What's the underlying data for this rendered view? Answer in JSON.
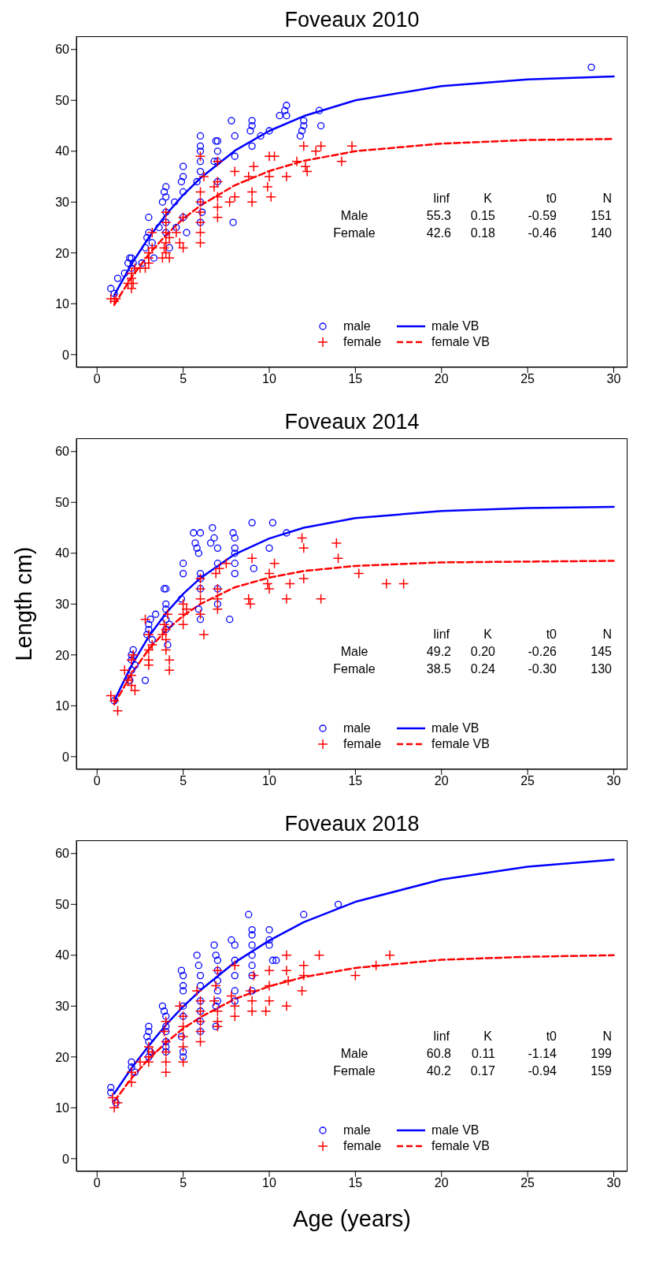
{
  "chart_data": [
    {
      "type": "scatter",
      "title": "Foveaux 2010",
      "xlim": [
        -1.2,
        30.8
      ],
      "ylim": [
        -2.5,
        62.6
      ],
      "xticks": [
        0,
        5,
        10,
        15,
        20,
        25,
        30
      ],
      "yticks": [
        0,
        10,
        20,
        30,
        40,
        50,
        60
      ],
      "legend": "bottom",
      "annotations": [
        "linf",
        "K",
        "t0",
        "N",
        "Male",
        "55.3",
        "0.15",
        "-0.59",
        "151",
        "Female",
        "42.6",
        "0.18",
        "-0.46",
        "140"
      ],
      "series": [
        {
          "name": "male",
          "type": "scatter",
          "marker": "circle",
          "color": "#0000ff",
          "x": [
            0.8,
            1,
            1.2,
            1.6,
            1.8,
            1.9,
            2,
            2,
            2.1,
            2.6,
            2.8,
            2.9,
            3,
            3,
            3.2,
            3.3,
            3.6,
            3.8,
            3.9,
            4,
            4,
            4,
            4,
            4,
            4.2,
            4.5,
            4.6,
            4.9,
            5,
            5,
            5,
            5,
            5.2,
            6,
            6,
            6,
            6,
            6,
            5.8,
            6,
            6.1,
            6,
            6.8,
            6.9,
            7,
            7,
            7,
            7,
            7.9,
            7.8,
            8,
            8,
            8.9,
            9,
            9,
            9,
            9.5,
            10,
            10.6,
            10.9,
            11,
            11,
            11.9,
            11.8,
            12,
            12,
            12.9,
            13,
            28.7
          ],
          "values": [
            13,
            12,
            15,
            16,
            18,
            19,
            19,
            17,
            18,
            18,
            21,
            23,
            27,
            24,
            22,
            19,
            25,
            30,
            32,
            33,
            31,
            28,
            26,
            24,
            21,
            30,
            25,
            34,
            37,
            35,
            32,
            27,
            24,
            43,
            41,
            40,
            38,
            36,
            34,
            30,
            28,
            26,
            38,
            42,
            42,
            40,
            38,
            34,
            26,
            46,
            43,
            39,
            44,
            46,
            45,
            41,
            43,
            44,
            47,
            48,
            49,
            47,
            44,
            43,
            45,
            46,
            48,
            45,
            56.5
          ]
        },
        {
          "name": "female",
          "type": "scatter",
          "marker": "cross",
          "color": "#ff0000",
          "x": [
            0.8,
            1,
            1.1,
            1.8,
            2,
            2,
            2,
            2.2,
            2.1,
            2.5,
            2.8,
            3,
            3,
            3,
            3.2,
            3.2,
            3.8,
            3.9,
            4,
            4,
            4,
            4,
            4,
            4.2,
            4.2,
            4.6,
            4.8,
            5,
            5,
            6,
            6,
            6,
            6,
            6,
            6,
            6,
            6.2,
            6.8,
            7,
            7,
            7,
            7,
            7,
            7.7,
            8,
            8,
            8.8,
            9,
            9,
            9.1,
            9.9,
            10,
            10,
            10.1,
            10.3,
            11,
            11.6,
            12,
            12.2,
            12.1,
            12.7,
            13,
            14.2,
            14.8
          ],
          "values": [
            11,
            10.5,
            11,
            14,
            16,
            15,
            13,
            17,
            14,
            17,
            17,
            20,
            19,
            18,
            21,
            24,
            19,
            21,
            24,
            22,
            20,
            26,
            28,
            19,
            23,
            24,
            22,
            21,
            27,
            32,
            30,
            28,
            26,
            24,
            22,
            39,
            35,
            33,
            31,
            29,
            27,
            34,
            38,
            30,
            36,
            31,
            35,
            32,
            30,
            37,
            33,
            35,
            39,
            31,
            39,
            35,
            38,
            41,
            36,
            37,
            40,
            41,
            38,
            41
          ]
        },
        {
          "name": "male VB",
          "type": "line",
          "line_style": "solid",
          "color": "#0000ff",
          "x": [
            1,
            2,
            3,
            4,
            5,
            6,
            8,
            10,
            12,
            15,
            20,
            25,
            30
          ],
          "values": [
            11.7,
            17.8,
            23.0,
            27.5,
            31.4,
            34.7,
            40.1,
            44.0,
            46.9,
            50.0,
            52.8,
            54.1,
            54.7
          ]
        },
        {
          "name": "female VB",
          "type": "line",
          "line_style": "dashed",
          "color": "#ff0000",
          "x": [
            1,
            2,
            3,
            4,
            5,
            6,
            8,
            10,
            12,
            15,
            20,
            25,
            30
          ],
          "values": [
            9.8,
            15.2,
            19.7,
            23.5,
            26.7,
            29.3,
            33.3,
            36.1,
            38.1,
            40.0,
            41.5,
            42.2,
            42.4
          ]
        }
      ]
    },
    {
      "type": "scatter",
      "title": "Foveaux 2014",
      "ylabel": "Length cm)",
      "xlim": [
        -1.2,
        30.8
      ],
      "ylim": [
        -2.5,
        62.6
      ],
      "xticks": [
        0,
        5,
        10,
        15,
        20,
        25,
        30
      ],
      "yticks": [
        0,
        10,
        20,
        30,
        40,
        50,
        60
      ],
      "legend": "bottom",
      "annotations": [
        "linf",
        "K",
        "t0",
        "N",
        "Male",
        "49.2",
        "0.20",
        "-0.26",
        "145",
        "Female",
        "38.5",
        "0.24",
        "-0.30",
        "130"
      ],
      "series": [
        {
          "name": "male",
          "type": "scatter",
          "marker": "circle",
          "color": "#0000ff",
          "x": [
            1,
            1.9,
            2,
            2,
            2,
            2.1,
            2.2,
            2.8,
            2.9,
            3,
            3,
            3.1,
            3.2,
            3.4,
            3.9,
            4,
            4,
            4,
            4,
            4,
            4.1,
            4.2,
            4.9,
            5,
            5,
            5.6,
            5.7,
            5.8,
            5.9,
            6,
            6,
            6,
            6,
            5.9,
            6,
            6.6,
            6.7,
            6.8,
            7,
            7,
            7,
            7,
            7.7,
            7.9,
            8,
            8,
            8,
            8,
            8,
            9,
            9.1,
            10,
            10.2,
            11
          ],
          "values": [
            11,
            15,
            17,
            19,
            20,
            21,
            18,
            15,
            24,
            25,
            26,
            27,
            23,
            28,
            33,
            33,
            30,
            29,
            27,
            25,
            22,
            26,
            31,
            38,
            36,
            44,
            42,
            41,
            40,
            44,
            36,
            35,
            33,
            29,
            27,
            42,
            45,
            43,
            41,
            38,
            33,
            30,
            27,
            44,
            43,
            41,
            40,
            38,
            36,
            46,
            37,
            41,
            46,
            44
          ]
        },
        {
          "name": "female",
          "type": "scatter",
          "marker": "cross",
          "color": "#ff0000",
          "x": [
            0.8,
            1.2,
            1,
            1.6,
            1.8,
            2,
            2,
            2,
            2.1,
            2.2,
            2.8,
            3,
            3,
            3,
            3,
            3.2,
            3.8,
            3.9,
            4,
            4,
            4,
            4.2,
            4.2,
            4.1,
            5,
            5,
            5,
            5.2,
            6,
            6,
            6,
            6,
            6.2,
            6.9,
            7,
            7,
            7,
            7.1,
            7.5,
            8.8,
            8.9,
            9,
            9.9,
            10,
            10,
            10.3,
            11,
            11.2,
            11.9,
            12,
            12,
            13,
            13.9,
            14,
            15.2,
            16.8,
            17.8
          ],
          "values": [
            12,
            9,
            11,
            17,
            15,
            16,
            14,
            19,
            20,
            13,
            27,
            24,
            21,
            19,
            18,
            22,
            24,
            26,
            25,
            23,
            21,
            19,
            17,
            28,
            30,
            28,
            26,
            29,
            35,
            33,
            31,
            28,
            24,
            36,
            33,
            31,
            29,
            37,
            38,
            31,
            30,
            39,
            34,
            36,
            33,
            38,
            31,
            34,
            43,
            41,
            35,
            31,
            42,
            39,
            36,
            34,
            34
          ]
        },
        {
          "name": "male VB",
          "type": "line",
          "line_style": "solid",
          "color": "#0000ff",
          "x": [
            1,
            2,
            3,
            4,
            5,
            6,
            8,
            10,
            12,
            15,
            20,
            25,
            30
          ],
          "values": [
            11.0,
            17.9,
            23.6,
            28.2,
            32.0,
            35.1,
            39.8,
            42.9,
            45.0,
            46.9,
            48.3,
            48.9,
            49.1
          ]
        },
        {
          "name": "female VB",
          "type": "line",
          "line_style": "dashed",
          "color": "#ff0000",
          "x": [
            1,
            2,
            3,
            4,
            5,
            6,
            8,
            10,
            12,
            15,
            20,
            30
          ],
          "values": [
            10.3,
            16.3,
            21.1,
            24.8,
            27.7,
            30.0,
            33.3,
            35.2,
            36.5,
            37.5,
            38.2,
            38.5
          ]
        }
      ]
    },
    {
      "type": "scatter",
      "title": "Foveaux 2018",
      "xlabel": "Age (years)",
      "xlim": [
        -1.2,
        30.8
      ],
      "ylim": [
        -2.5,
        62.6
      ],
      "xticks": [
        0,
        5,
        10,
        15,
        20,
        25,
        30
      ],
      "yticks": [
        0,
        10,
        20,
        30,
        40,
        50,
        60
      ],
      "legend": "bottom",
      "annotations": [
        "linf",
        "K",
        "t0",
        "N",
        "Male",
        "60.8",
        "0.11",
        "-1.14",
        "199",
        "Female",
        "40.2",
        "0.17",
        "-0.94",
        "159"
      ],
      "series": [
        {
          "name": "male",
          "type": "scatter",
          "marker": "circle",
          "color": "#0000ff",
          "x": [
            0.8,
            0.8,
            1.1,
            2,
            2,
            2.2,
            3,
            3,
            2.9,
            3,
            3,
            3.1,
            3.8,
            3.9,
            4,
            4,
            4,
            4,
            4,
            4,
            4.9,
            5,
            5,
            5,
            5,
            5,
            4.9,
            5,
            5,
            5.8,
            5.9,
            6,
            6,
            6,
            6,
            6,
            6,
            6.8,
            6.9,
            7,
            7,
            7,
            7,
            7,
            6.9,
            6.9,
            7.8,
            8,
            8,
            8,
            8,
            8,
            8.8,
            9,
            9,
            9,
            9,
            9,
            9,
            9,
            10,
            10,
            10,
            10.2,
            10.4,
            12,
            14
          ],
          "values": [
            14,
            13,
            11,
            19,
            18,
            17,
            26,
            25,
            24,
            23,
            20,
            21,
            30,
            29,
            28,
            26,
            25,
            23,
            22,
            21,
            37,
            36,
            34,
            33,
            30,
            28,
            24,
            21,
            20,
            40,
            38,
            36,
            34,
            31,
            29,
            27,
            25,
            42,
            40,
            39,
            37,
            35,
            33,
            31,
            30,
            26,
            43,
            42,
            39,
            36,
            33,
            31,
            48,
            45,
            44,
            42,
            40,
            38,
            36,
            33,
            45,
            43,
            42,
            39,
            39,
            48,
            50
          ]
        },
        {
          "name": "female",
          "type": "scatter",
          "marker": "cross",
          "color": "#ff0000",
          "x": [
            0.9,
            1,
            1.2,
            2,
            2,
            2.5,
            3,
            3,
            3,
            3.2,
            3.9,
            4,
            4,
            4,
            4,
            4,
            4.8,
            5,
            5,
            5,
            5,
            5,
            5.8,
            6,
            6,
            6,
            6,
            6,
            6.8,
            7,
            7,
            7,
            6.9,
            7,
            7.8,
            8,
            8,
            8,
            8.9,
            9,
            9,
            9.1,
            9.8,
            10,
            10,
            10,
            11,
            11,
            11,
            11.1,
            11.9,
            12,
            12,
            12.9,
            15,
            16.2,
            17
          ],
          "values": [
            12,
            10,
            11,
            15,
            17,
            19,
            22,
            20,
            19,
            21,
            25,
            23,
            21,
            19,
            17,
            27,
            30,
            28,
            26,
            24,
            22,
            19,
            33,
            31,
            29,
            27,
            25,
            23,
            31,
            29,
            27,
            26,
            34,
            37,
            32,
            30,
            28,
            38,
            33,
            31,
            29,
            36,
            29,
            31,
            34,
            37,
            37,
            40,
            30,
            35,
            33,
            36,
            38,
            40,
            36,
            38,
            40
          ]
        },
        {
          "name": "male VB",
          "type": "line",
          "line_style": "solid",
          "color": "#0000ff",
          "x": [
            1,
            2,
            3,
            4,
            5,
            6,
            8,
            10,
            12,
            15,
            20,
            25,
            30
          ],
          "values": [
            12.8,
            17.8,
            22.2,
            26.3,
            29.9,
            33.1,
            38.6,
            42.9,
            46.5,
            50.5,
            54.9,
            57.4,
            58.8
          ]
        },
        {
          "name": "female VB",
          "type": "line",
          "line_style": "dashed",
          "color": "#ff0000",
          "x": [
            1,
            2,
            3,
            4,
            5,
            6,
            8,
            10,
            12,
            15,
            20,
            25,
            30
          ],
          "values": [
            11.3,
            15.8,
            19.6,
            22.8,
            25.6,
            27.8,
            31.4,
            33.9,
            35.7,
            37.5,
            39.1,
            39.7,
            40.0
          ]
        }
      ]
    }
  ]
}
